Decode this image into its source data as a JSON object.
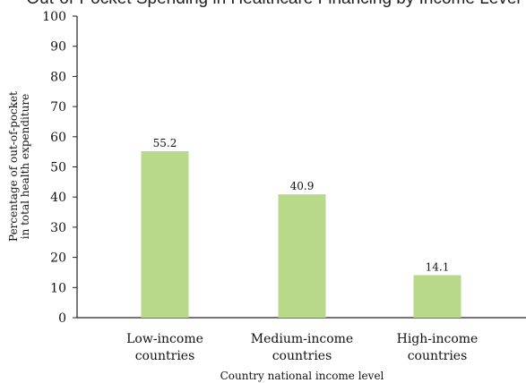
{
  "chart_data": {
    "type": "bar",
    "title": "Out-of-Pocket Spending in Healthcare Financing by Income Level",
    "xlabel": "Country national income level",
    "ylabel_lines": [
      "Percentage of out-of-pocket",
      "in total health expenditure"
    ],
    "categories": [
      [
        "Low-income",
        "countries"
      ],
      [
        "Medium-income",
        "countries"
      ],
      [
        "High-income",
        "countries"
      ]
    ],
    "values": [
      55.2,
      40.9,
      14.1
    ],
    "value_labels": [
      "55.2",
      "40.9",
      "14.1"
    ],
    "ylim": [
      0,
      100
    ],
    "yticks": [
      0,
      10,
      20,
      30,
      40,
      50,
      60,
      70,
      80,
      90,
      100
    ],
    "grid": false,
    "legend": "none",
    "colors": {
      "bar": "#b8d98a",
      "axis": "#222222"
    }
  }
}
